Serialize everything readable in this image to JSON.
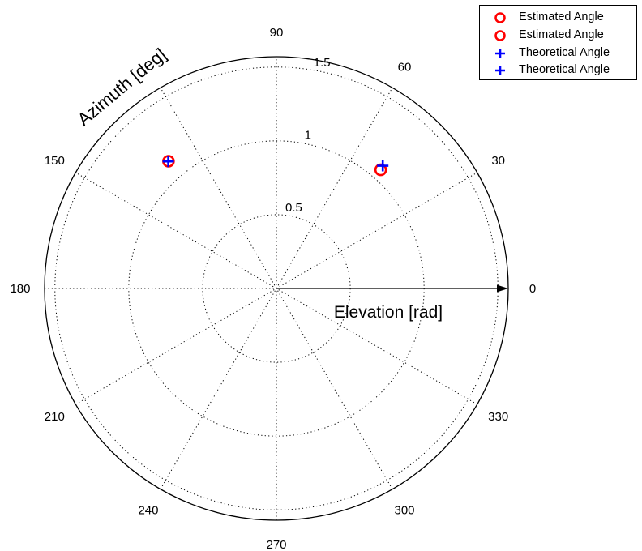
{
  "chart_data": {
    "type": "scatter",
    "projection": "polar",
    "angle_label": "Azimuth [deg]",
    "radius_label": "Elevation [rad]",
    "angle_ticks": [
      0,
      30,
      60,
      90,
      120,
      150,
      180,
      210,
      240,
      270,
      300,
      330
    ],
    "angle_tick_labels": [
      "0",
      "30",
      "60",
      "90",
      "",
      "150",
      "180",
      "210",
      "240",
      "270",
      "300",
      "330"
    ],
    "radius_ticks": [
      0.5,
      1,
      1.5
    ],
    "radius_tick_labels": [
      "0.5",
      "1",
      "1.5"
    ],
    "rlim": [
      0,
      1.57
    ],
    "grid": true,
    "legend_position": "top-right",
    "series": [
      {
        "name": "Estimated Angle",
        "marker": "circle",
        "color": "#ff0000",
        "points": [
          {
            "azimuth": 48.7,
            "elevation": 1.07
          }
        ]
      },
      {
        "name": "Estimated Angle",
        "marker": "circle",
        "color": "#ff0000",
        "points": [
          {
            "azimuth": 130.3,
            "elevation": 1.13
          }
        ]
      },
      {
        "name": "Theoretical Angle",
        "marker": "plus",
        "color": "#0000ff",
        "points": [
          {
            "azimuth": 49.1,
            "elevation": 1.1
          }
        ]
      },
      {
        "name": "Theoretical Angle",
        "marker": "plus",
        "color": "#0000ff",
        "points": [
          {
            "azimuth": 130.4,
            "elevation": 1.13
          }
        ]
      }
    ]
  }
}
